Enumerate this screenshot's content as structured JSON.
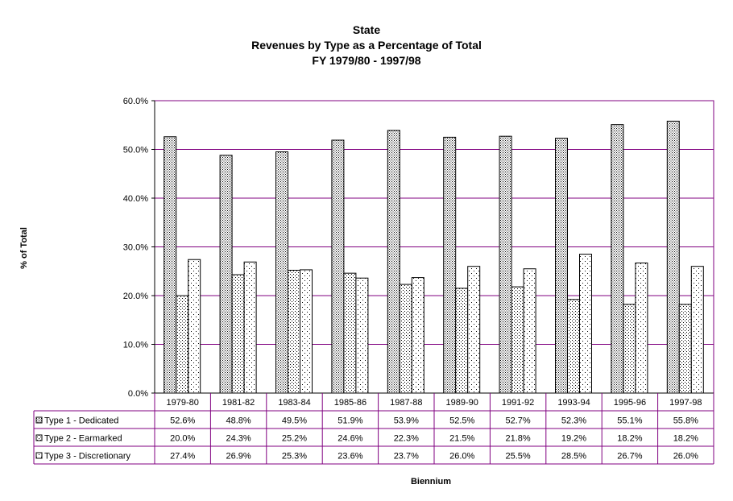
{
  "chart_data": {
    "type": "bar",
    "title": [
      "State",
      "Revenues by Type as a Percentage of Total",
      "FY 1979/80 - 1997/98"
    ],
    "xlabel": "Biennium",
    "ylabel": "% of Total",
    "ylim": [
      0,
      60
    ],
    "yticks": [
      "0.0%",
      "10.0%",
      "20.0%",
      "30.0%",
      "40.0%",
      "50.0%",
      "60.0%"
    ],
    "grid": true,
    "legend": "data-table",
    "categories": [
      "1979-80",
      "1981-82",
      "1983-84",
      "1985-86",
      "1987-88",
      "1989-90",
      "1991-92",
      "1993-94",
      "1995-96",
      "1997-98"
    ],
    "series": [
      {
        "name": "Type 1 - Dedicated",
        "values": [
          52.6,
          48.8,
          49.5,
          51.9,
          53.9,
          52.5,
          52.7,
          52.3,
          55.1,
          55.8
        ],
        "labels": [
          "52.6%",
          "48.8%",
          "49.5%",
          "51.9%",
          "53.9%",
          "52.5%",
          "52.7%",
          "52.3%",
          "55.1%",
          "55.8%"
        ],
        "pattern": "dense-dots"
      },
      {
        "name": "Type 2  - Earmarked",
        "values": [
          20.0,
          24.3,
          25.2,
          24.6,
          22.3,
          21.5,
          21.8,
          19.2,
          18.2,
          18.2
        ],
        "labels": [
          "20.0%",
          "24.3%",
          "25.2%",
          "24.6%",
          "22.3%",
          "21.5%",
          "21.8%",
          "19.2%",
          "18.2%",
          "18.2%"
        ],
        "pattern": "medium-dots"
      },
      {
        "name": "Type 3 - Discretionary",
        "values": [
          27.4,
          26.9,
          25.3,
          23.6,
          23.7,
          26.0,
          25.5,
          28.5,
          26.7,
          26.0
        ],
        "labels": [
          "27.4%",
          "26.9%",
          "25.3%",
          "23.6%",
          "23.7%",
          "26.0%",
          "25.5%",
          "28.5%",
          "26.7%",
          "26.0%"
        ],
        "pattern": "sparse-dots"
      }
    ],
    "colors": {
      "gridline": "#800080",
      "axis": "#000000",
      "background": "#ffffff"
    }
  }
}
